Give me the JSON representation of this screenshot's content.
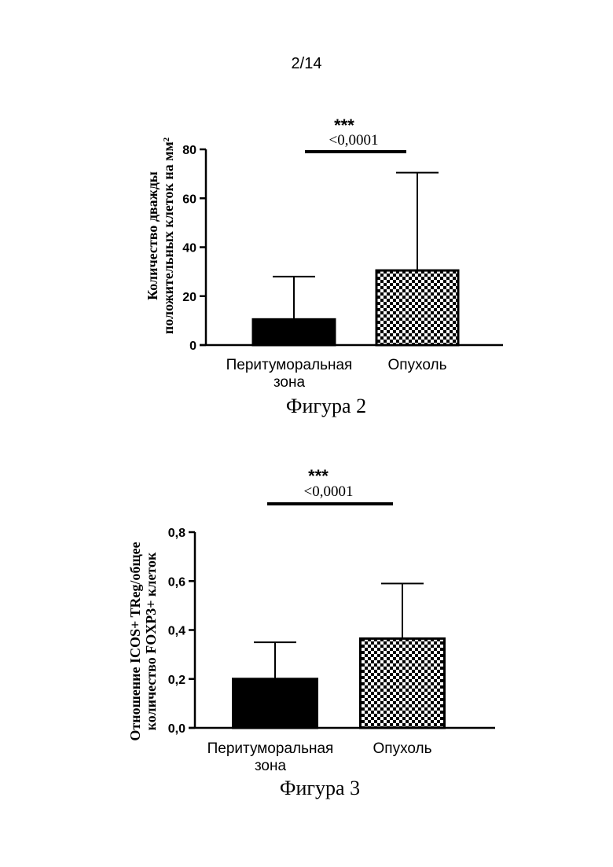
{
  "page": {
    "header": "2/14"
  },
  "chart_data": [
    {
      "type": "bar",
      "figure_caption": "Фигура 2",
      "ylabel_line1": "Количество дважды",
      "ylabel_line2": "положительных клеток на мм²",
      "categories": [
        {
          "line1": "Перитуморальная",
          "line2": "зона"
        },
        {
          "line1": "Опухоль",
          "line2": ""
        }
      ],
      "values": [
        10.5,
        30.5
      ],
      "error_upper": [
        28,
        70.5
      ],
      "bar_fills": [
        "solid",
        "checkered"
      ],
      "bar_color": "#000000",
      "ylim": [
        0,
        80
      ],
      "yticks": [
        0,
        20,
        40,
        60,
        80
      ],
      "ytick_labels": [
        "0",
        "20",
        "40",
        "60",
        "80"
      ],
      "significance": {
        "stars": "***",
        "pvalue": "<0,0001"
      },
      "grid": false
    },
    {
      "type": "bar",
      "figure_caption": "Фигура 3",
      "ylabel_line1": "Отношение ICOS+ TReg/общее",
      "ylabel_line2": "количество FOXP3+ клеток",
      "categories": [
        {
          "line1": "Перитуморальная",
          "line2": "зона"
        },
        {
          "line1": "Опухоль",
          "line2": ""
        }
      ],
      "values": [
        0.2,
        0.365
      ],
      "error_upper": [
        0.35,
        0.59
      ],
      "bar_fills": [
        "solid",
        "checkered"
      ],
      "bar_color": "#000000",
      "ylim": [
        0,
        0.8
      ],
      "yticks": [
        0,
        0.2,
        0.4,
        0.6,
        0.8
      ],
      "ytick_labels": [
        "0,0",
        "0,2",
        "0,4",
        "0,6",
        "0,8"
      ],
      "significance": {
        "stars": "***",
        "pvalue": "<0,0001"
      },
      "grid": false
    }
  ]
}
